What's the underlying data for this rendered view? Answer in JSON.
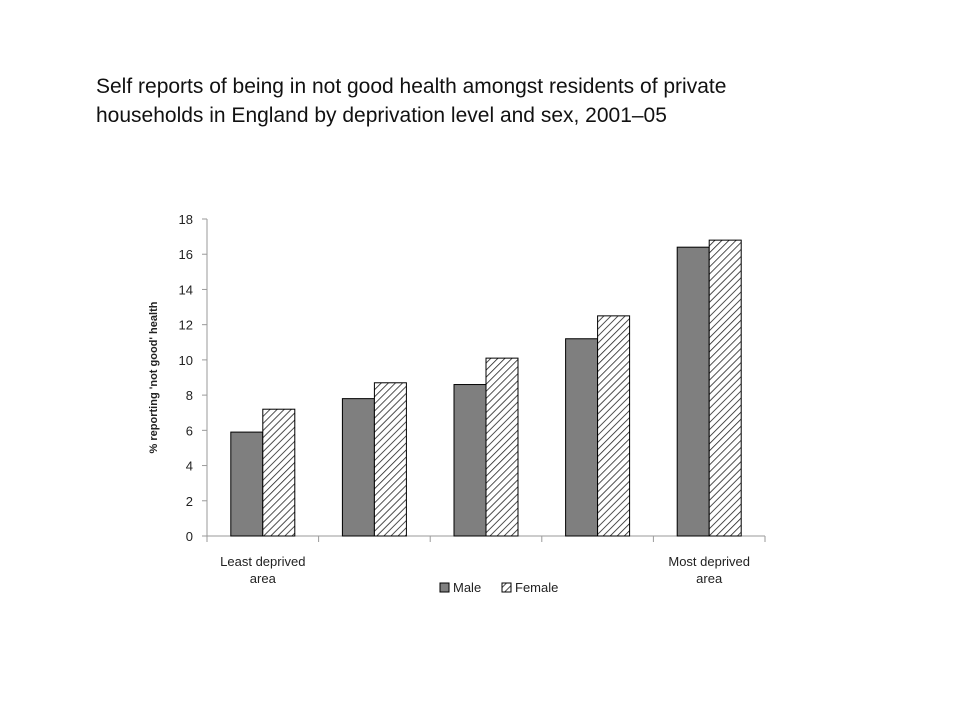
{
  "slide": {
    "title_line1": "Self reports of being in not good health amongst residents of private",
    "title_line2": "households in England by deprivation level and sex, 2001–05"
  },
  "chart_data": {
    "type": "bar",
    "categories": [
      "Least deprived area",
      "",
      "",
      "",
      "Most deprived area"
    ],
    "series": [
      {
        "name": "Male",
        "values": [
          5.9,
          7.8,
          8.6,
          11.2,
          16.4
        ],
        "color": "#7f7f7f",
        "pattern": "solid"
      },
      {
        "name": "Female",
        "values": [
          7.2,
          8.7,
          10.1,
          12.5,
          16.8
        ],
        "color": "#ffffff",
        "pattern": "diagonal-hatch"
      }
    ],
    "xlabel": "",
    "ylabel": "% reporting 'not good' health",
    "ylim": [
      0,
      18
    ],
    "yticks": [
      0,
      2,
      4,
      6,
      8,
      10,
      12,
      14,
      16,
      18
    ],
    "grid": false,
    "legend_position": "bottom"
  }
}
